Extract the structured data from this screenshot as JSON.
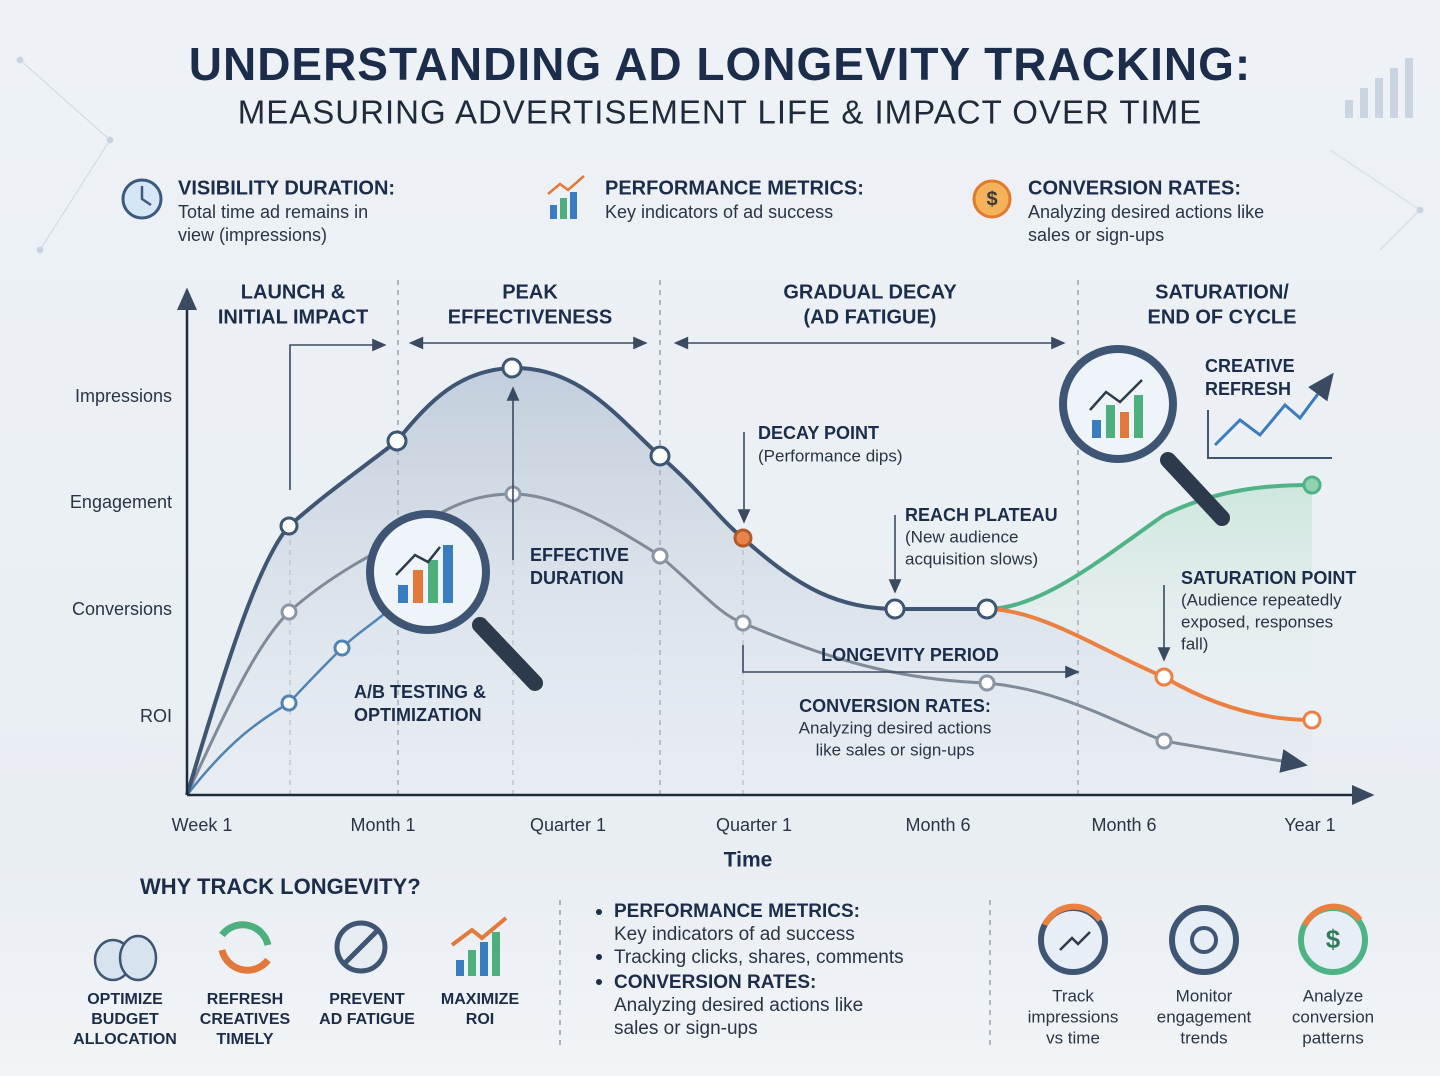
{
  "header": {
    "title": "UNDERSTANDING AD LONGEVITY TRACKING:",
    "subtitle": "MEASURING ADVERTISEMENT LIFE & IMPACT OVER TIME"
  },
  "features": [
    {
      "title": "VISIBILITY DURATION:",
      "lines": [
        "Total time ad remains in",
        "view (impressions)"
      ]
    },
    {
      "title": "PERFORMANCE METRICS:",
      "lines": [
        "Key indicators of ad success"
      ]
    },
    {
      "title": "CONVERSION RATES:",
      "lines": [
        "Analyzing desired actions like",
        "sales or sign-ups"
      ]
    }
  ],
  "diagram": {
    "phases": [
      [
        "LAUNCH &",
        "INITIAL IMPACT"
      ],
      [
        "PEAK",
        "EFFECTIVENESS"
      ],
      [
        "GRADUAL DECAY",
        "(AD FATIGUE)"
      ],
      [
        "SATURATION/",
        "END OF CYCLE"
      ]
    ],
    "y_labels": [
      "Impressions",
      "Engagement",
      "Conversions",
      "ROI"
    ],
    "x_labels": [
      "Week 1",
      "Month 1",
      "Quarter 1",
      "Quarter 1",
      "Month 6",
      "Month 6",
      "Year 1"
    ],
    "x_title": "Time",
    "annotations": {
      "decay_point": [
        "DECAY POINT",
        "(Performance dips)"
      ],
      "reach_plateau": [
        "REACH PLATEAU",
        "(New audience",
        "acquisition slows)"
      ],
      "effective_duration": [
        "EFFECTIVE",
        "DURATION"
      ],
      "ab_testing": [
        "A/B TESTING &",
        "OPTIMIZATION"
      ],
      "longevity_period": "LONGEVITY PERIOD",
      "conversion_rates": [
        "CONVERSION RATES:",
        "Analyzing desired actions",
        "like sales or sign-ups"
      ],
      "saturation_point": [
        "SATURATION POINT",
        "(Audience repeatedly",
        "exposed, responses",
        "fall)"
      ],
      "creative_refresh": [
        "CREATIVE",
        "REFRESH"
      ]
    }
  },
  "why_track": {
    "title": "WHY TRACK LONGEVITY?",
    "items": [
      [
        "OPTIMIZE",
        "BUDGET",
        "ALLOCATION"
      ],
      [
        "REFRESH",
        "CREATIVES",
        "TIMELY"
      ],
      [
        "PREVENT",
        "AD FATIGUE"
      ],
      [
        "MAXIMIZE",
        "ROI"
      ]
    ]
  },
  "bullets": [
    {
      "bold": "PERFORMANCE METRICS:",
      "lines": [
        "Key indicators of ad success"
      ]
    },
    {
      "bold": null,
      "lines": [
        "Tracking clicks, shares, comments"
      ]
    },
    {
      "bold": "CONVERSION RATES:",
      "lines": [
        "Analyzing desired actions like",
        "sales or sign-ups"
      ]
    }
  ],
  "actions": [
    [
      "Track",
      "impressions",
      "vs time"
    ],
    [
      "Monitor",
      "engagement",
      "trends"
    ],
    [
      "Analyze",
      "conversion",
      "patterns"
    ]
  ]
}
